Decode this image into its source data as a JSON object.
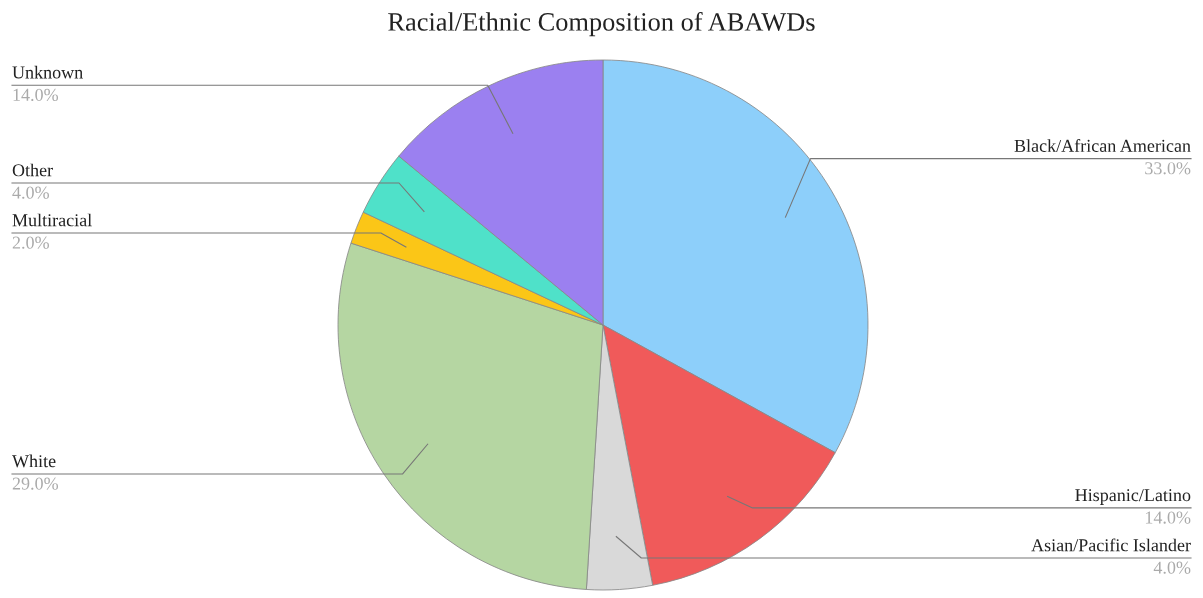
{
  "chart_data": {
    "type": "pie",
    "title": "Racial/Ethnic Composition of ABAWDs",
    "categories": [
      "Black/African American",
      "Hispanic/Latino",
      "Asian/Pacific Islander",
      "White",
      "Multiracial",
      "Other",
      "Unknown"
    ],
    "values": [
      33,
      14,
      4,
      29,
      2,
      4,
      14
    ],
    "colors": [
      "#8dcffa",
      "#f05a5a",
      "#d9d9d9",
      "#b5d6a2",
      "#fbc617",
      "#4fe1c9",
      "#9b80f0"
    ],
    "value_labels": [
      "33.0%",
      "14.0%",
      "4.0%",
      "29.0%",
      "2.0%",
      "4.0%",
      "14.0%"
    ]
  }
}
